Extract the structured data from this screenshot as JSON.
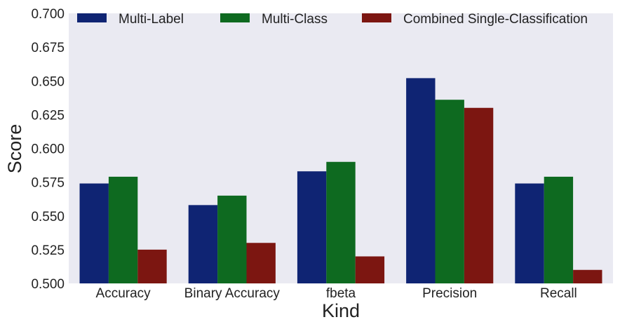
{
  "chart_data": {
    "type": "bar",
    "title": "",
    "xlabel": "Kind",
    "ylabel": "Score",
    "ylim": [
      0.5,
      0.7
    ],
    "yticks": [
      0.5,
      0.525,
      0.55,
      0.575,
      0.6,
      0.625,
      0.65,
      0.675,
      0.7
    ],
    "ytick_labels": [
      "0.500",
      "0.525",
      "0.550",
      "0.575",
      "0.600",
      "0.625",
      "0.650",
      "0.675",
      "0.700"
    ],
    "categories": [
      "Accuracy",
      "Binary Accuracy",
      "fbeta",
      "Precision",
      "Recall"
    ],
    "series": [
      {
        "name": "Multi-Label",
        "color": "#0f2473",
        "values": [
          0.574,
          0.558,
          0.583,
          0.652,
          0.574
        ]
      },
      {
        "name": "Multi-Class",
        "color": "#0e6a20",
        "values": [
          0.579,
          0.565,
          0.59,
          0.636,
          0.579
        ]
      },
      {
        "name": "Combined Single-Classification",
        "color": "#7c1611",
        "values": [
          0.525,
          0.53,
          0.52,
          0.63,
          0.51
        ]
      }
    ],
    "grid": false,
    "legend_position": "top",
    "background": "#eaeaf2"
  }
}
